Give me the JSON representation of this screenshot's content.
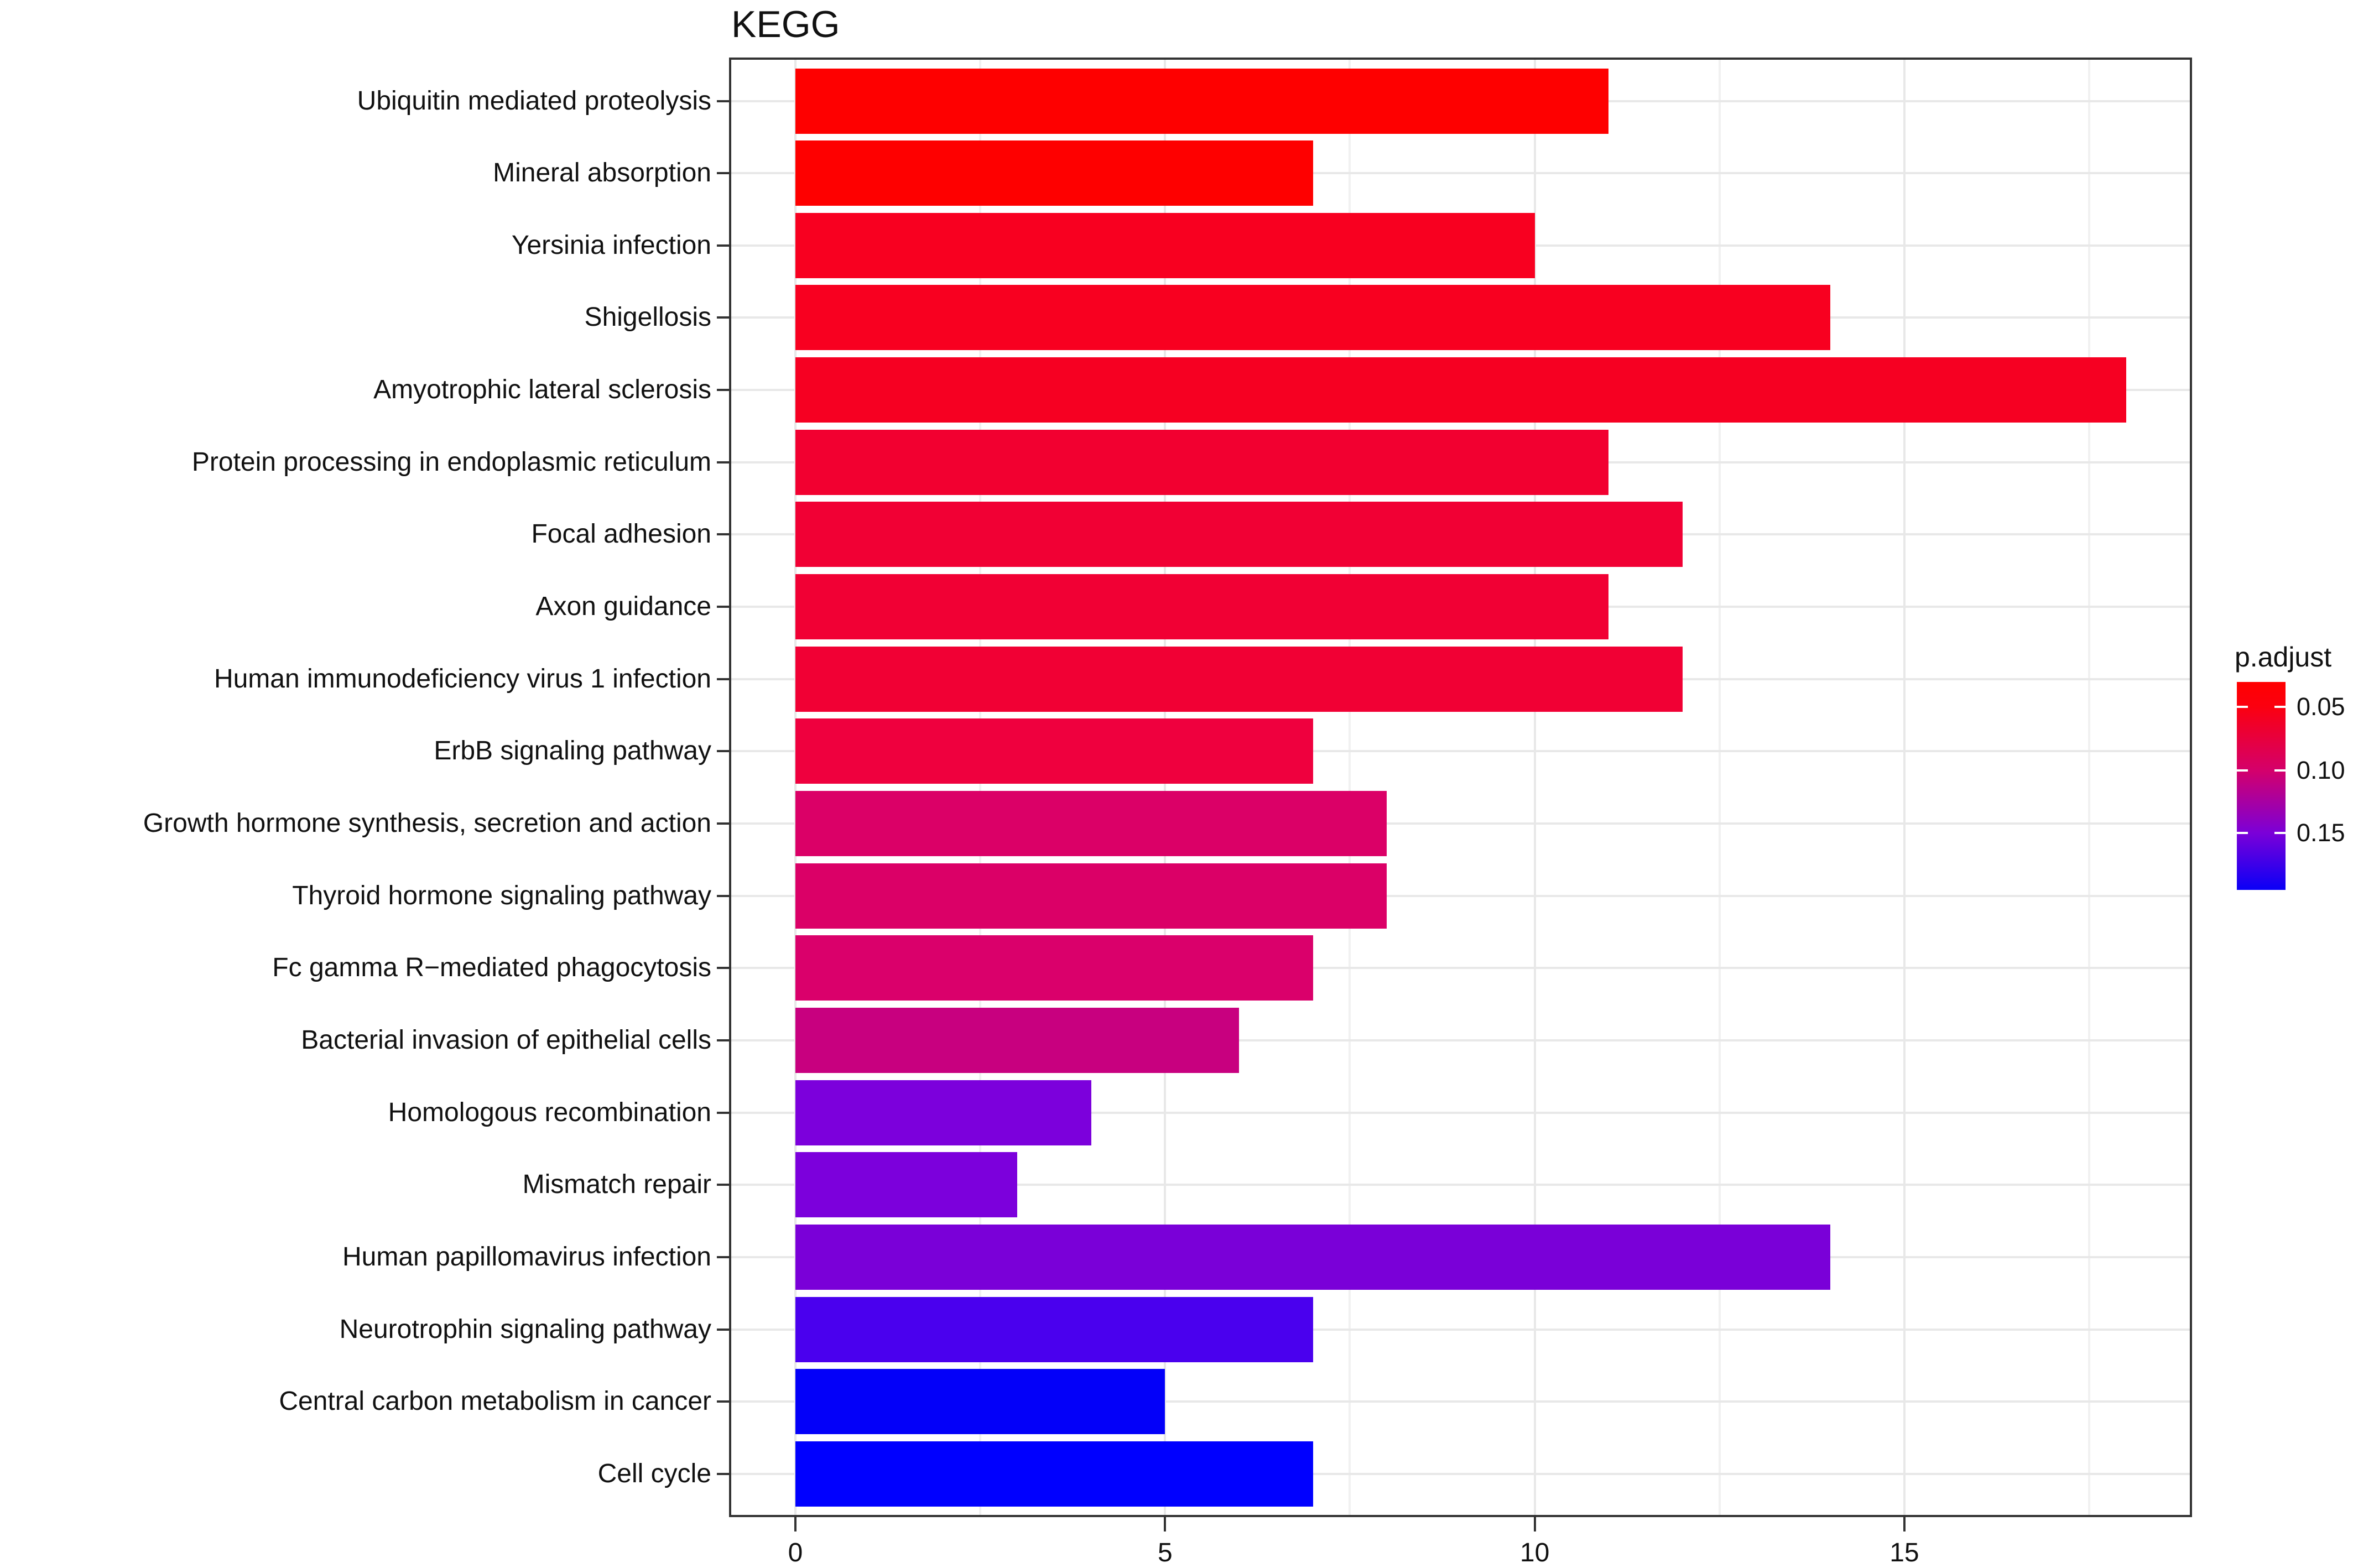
{
  "title": "KEGG",
  "chart_data": {
    "type": "bar",
    "orientation": "horizontal",
    "title": "KEGG",
    "xlabel": "",
    "ylabel": "",
    "grid": "major and minor vertical, major horizontal at row centers",
    "categories": [
      "Ubiquitin mediated proteolysis",
      "Mineral absorption",
      "Yersinia infection",
      "Shigellosis",
      "Amyotrophic lateral sclerosis",
      "Protein processing in endoplasmic reticulum",
      "Focal adhesion",
      "Axon guidance",
      "Human immunodeficiency virus 1 infection",
      "ErbB signaling pathway",
      "Growth hormone synthesis, secretion and action",
      "Thyroid hormone signaling pathway",
      "Fc gamma R−mediated phagocytosis",
      "Bacterial invasion of epithelial cells",
      "Homologous recombination",
      "Mismatch repair",
      "Human papillomavirus infection",
      "Neurotrophin signaling pathway",
      "Central carbon metabolism in cancer",
      "Cell cycle"
    ],
    "values": [
      11,
      7,
      10,
      14,
      18,
      11,
      12,
      11,
      12,
      7,
      8,
      8,
      7,
      6,
      4,
      3,
      14,
      7,
      5,
      7
    ],
    "bar_colors": [
      "#FE0000",
      "#FE0000",
      "#F80020",
      "#F80020",
      "#F60022",
      "#F20030",
      "#F10034",
      "#F10034",
      "#F10034",
      "#EF003E",
      "#DB0067",
      "#DB0067",
      "#DA006B",
      "#C8007F",
      "#7C00DC",
      "#7C00DC",
      "#7A00D8",
      "#4A00EE",
      "#0300F9",
      "#0000FF"
    ],
    "x_axis": {
      "tick_labels": [
        "0",
        "5",
        "10",
        "15"
      ],
      "tick_values": [
        0,
        5,
        10,
        15
      ],
      "minor_tick_values": [
        2.5,
        7.5,
        12.5,
        17.5
      ],
      "range": [
        -0.9,
        18.9
      ]
    },
    "legend": {
      "title": "p.adjust",
      "tick_labels": [
        "0.05",
        "0.10",
        "0.15"
      ],
      "tick_pct": [
        11.97,
        42.55,
        72.61
      ],
      "gradient_stops": [
        {
          "pct": 0,
          "color": "#FF0000"
        },
        {
          "pct": 11.97,
          "color": "#FB0010"
        },
        {
          "pct": 42.55,
          "color": "#D4006B"
        },
        {
          "pct": 72.61,
          "color": "#7B00D8"
        },
        {
          "pct": 100,
          "color": "#0A00F6"
        }
      ]
    },
    "colors": {
      "background": "#FFFFFF",
      "panel_border": "#333333",
      "grid_major": "#E8E8E8",
      "grid_minor": "#F1F1F1",
      "text": "#111111",
      "legend_tick": "#FFFFFF"
    }
  }
}
